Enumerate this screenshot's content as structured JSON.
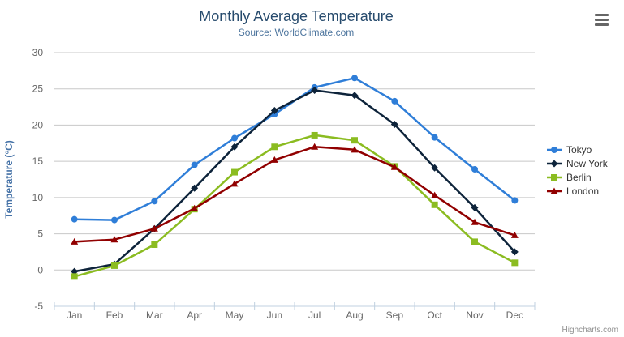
{
  "credits": {
    "label": "Highcharts.com"
  },
  "chart_data": {
    "type": "line",
    "title": "Monthly Average Temperature",
    "subtitle": "Source: WorldClimate.com",
    "xlabel": "",
    "ylabel": "Temperature (°C)",
    "ylim": [
      -5,
      30
    ],
    "ytick_step": 5,
    "grid": true,
    "legend_position": "right",
    "categories": [
      "Jan",
      "Feb",
      "Mar",
      "Apr",
      "May",
      "Jun",
      "Jul",
      "Aug",
      "Sep",
      "Oct",
      "Nov",
      "Dec"
    ],
    "series": [
      {
        "name": "Tokyo",
        "color": "#2f7ed8",
        "marker": "circle",
        "values": [
          7.0,
          6.9,
          9.5,
          14.5,
          18.2,
          21.5,
          25.2,
          26.5,
          23.3,
          18.3,
          13.9,
          9.6
        ]
      },
      {
        "name": "New York",
        "color": "#0d233a",
        "marker": "diamond",
        "values": [
          -0.2,
          0.8,
          5.7,
          11.3,
          17.0,
          22.0,
          24.8,
          24.1,
          20.1,
          14.1,
          8.6,
          2.5
        ]
      },
      {
        "name": "Berlin",
        "color": "#8bbc21",
        "marker": "square",
        "values": [
          -0.9,
          0.6,
          3.5,
          8.4,
          13.5,
          17.0,
          18.6,
          17.9,
          14.3,
          9.0,
          3.9,
          1.0
        ]
      },
      {
        "name": "London",
        "color": "#910000",
        "marker": "triangle",
        "values": [
          3.9,
          4.2,
          5.7,
          8.5,
          11.9,
          15.2,
          17.0,
          16.6,
          14.2,
          10.3,
          6.6,
          4.8
        ]
      }
    ],
    "styles": {
      "grid_line_color": "#c8c8c8",
      "axis_line_color": "#c0d0e0",
      "tick_label_color": "#666666",
      "axis_title_color": "#4572a7"
    }
  }
}
